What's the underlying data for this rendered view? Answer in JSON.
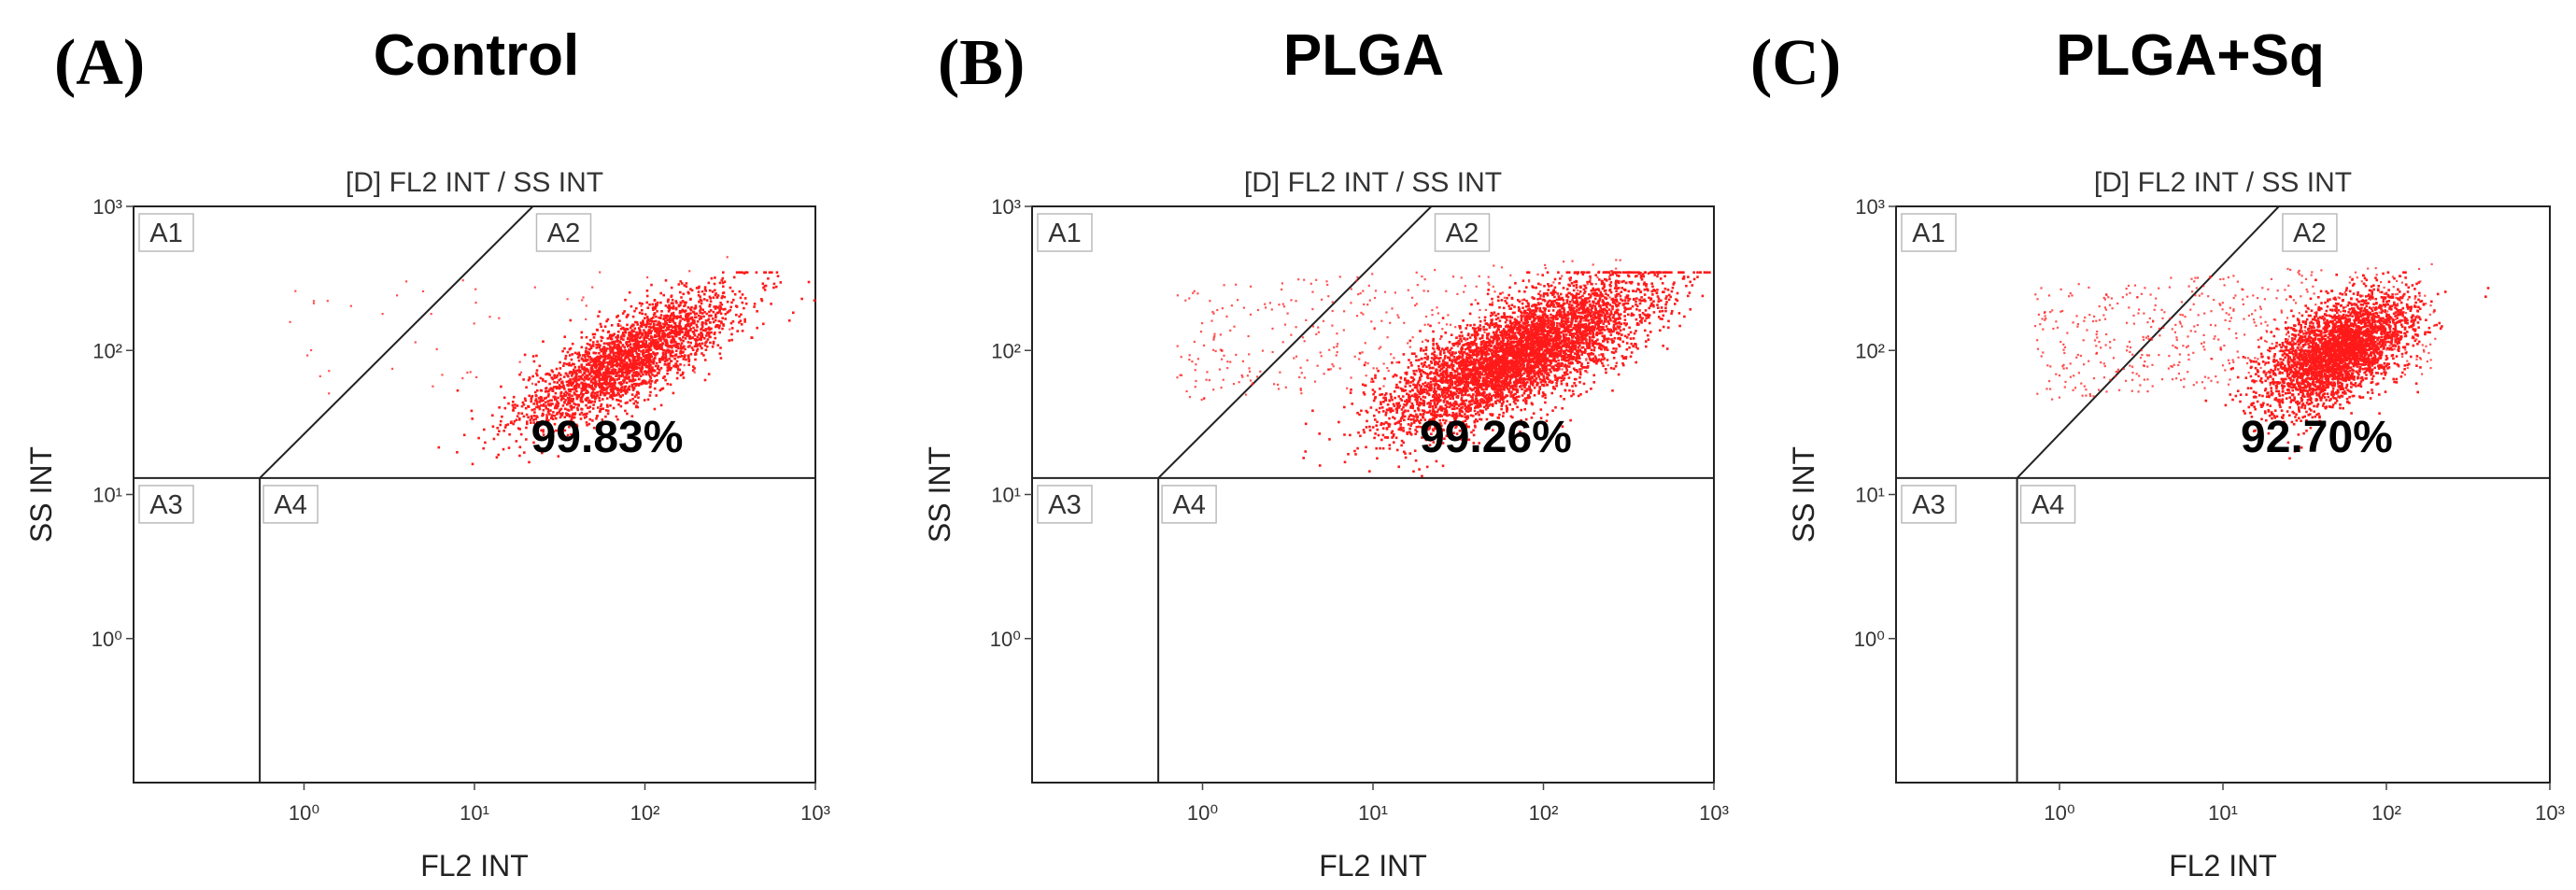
{
  "chart_data": [
    {
      "type": "scatter",
      "panel_letter": "(A)",
      "title": "Control",
      "plot_title": "[D] FL2 INT / SS INT",
      "xlabel": "FL2 INT",
      "ylabel": "SS INT",
      "x_scale": "log",
      "y_scale": "log",
      "xlim": [
        0.1,
        1000
      ],
      "ylim": [
        0.1,
        1000
      ],
      "x_tick_labels": [
        "10⁰",
        "10¹",
        "10²",
        "10³"
      ],
      "y_tick_labels": [
        "10³",
        "10²",
        "10¹",
        "10⁰"
      ],
      "gates": [
        "A1",
        "A2",
        "A3",
        "A4"
      ],
      "gate_divider_x": 0.55,
      "gate_divider_y": 13,
      "annotation": "99.83%",
      "point_color": "#ff1a1a",
      "population": {
        "center": [
          80,
          90
        ],
        "spread_log": [
          0.32,
          0.24
        ],
        "correlation": 0.8,
        "count": 2600,
        "sparse_count": 60
      }
    },
    {
      "type": "scatter",
      "panel_letter": "(B)",
      "title": "PLGA",
      "plot_title": "[D] FL2 INT / SS INT",
      "xlabel": "FL2 INT",
      "ylabel": "SS INT",
      "x_scale": "log",
      "y_scale": "log",
      "xlim": [
        0.1,
        1000
      ],
      "ylim": [
        0.1,
        1000
      ],
      "x_tick_labels": [
        "10⁰",
        "10¹",
        "10²",
        "10³"
      ],
      "y_tick_labels": [
        "10³",
        "10²",
        "10¹",
        "10⁰"
      ],
      "gates": [
        "A1",
        "A2",
        "A3",
        "A4"
      ],
      "gate_divider_x": 0.55,
      "gate_divider_y": 13,
      "annotation": "99.26%",
      "point_color": "#ff1a1a",
      "population": {
        "center": [
          70,
          95
        ],
        "spread_log": [
          0.38,
          0.26
        ],
        "correlation": 0.75,
        "count": 5200,
        "sparse_count": 420
      }
    },
    {
      "type": "scatter",
      "panel_letter": "(C)",
      "title": "PLGA+Sq",
      "plot_title": "[D] FL2 INT / SS INT",
      "xlabel": "FL2 INT",
      "ylabel": "SS INT",
      "x_scale": "log",
      "y_scale": "log",
      "xlim": [
        0.1,
        1000
      ],
      "ylim": [
        0.1,
        1000
      ],
      "x_tick_labels": [
        "10⁰",
        "10¹",
        "10²",
        "10³"
      ],
      "y_tick_labels": [
        "10³",
        "10²",
        "10¹",
        "10⁰"
      ],
      "gates": [
        "A1",
        "A2",
        "A3",
        "A4"
      ],
      "gate_divider_x": 0.55,
      "gate_divider_y": 13,
      "annotation": "92.70%",
      "point_color": "#ff1a1a",
      "population": {
        "center": [
          50,
          100
        ],
        "spread_log": [
          0.22,
          0.2
        ],
        "correlation": 0.55,
        "count": 3200,
        "sparse_count": 620
      }
    }
  ]
}
